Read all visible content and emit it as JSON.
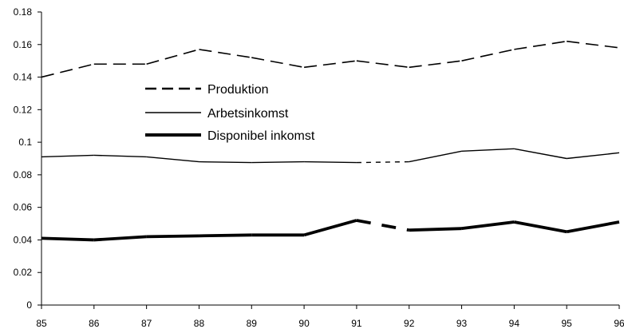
{
  "chart_data": {
    "type": "line",
    "title": "",
    "xlabel": "",
    "ylabel": "",
    "x": [
      "85",
      "86",
      "87",
      "88",
      "89",
      "90",
      "91",
      "92",
      "93",
      "94",
      "95",
      "96"
    ],
    "yticks": [
      "0",
      "0.02",
      "0.04",
      "0.06",
      "0.08",
      "0.1",
      "0.12",
      "0.14",
      "0.16",
      "0.18"
    ],
    "ylim": [
      0,
      0.18
    ],
    "grid": false,
    "legend_position": "upper-left inside plot",
    "series": [
      {
        "name": "Produktion",
        "style": "dashed",
        "weight": "normal",
        "values": [
          0.14,
          0.148,
          0.148,
          0.157,
          0.152,
          0.146,
          0.15,
          0.146,
          0.15,
          0.157,
          0.162,
          0.158
        ]
      },
      {
        "name": "Arbetsinkomst",
        "style": "solid",
        "weight": "thin",
        "break_after": "91",
        "break_style": "dotted",
        "values": [
          0.091,
          0.092,
          0.091,
          0.088,
          0.0875,
          0.088,
          0.0875,
          0.088,
          0.0945,
          0.096,
          0.09,
          0.0935
        ]
      },
      {
        "name": "Disponibel inkomst",
        "style": "solid",
        "weight": "thick",
        "break_after": "91",
        "break_style": "dashed",
        "values": [
          0.041,
          0.04,
          0.042,
          0.0425,
          0.043,
          0.043,
          0.052,
          0.046,
          0.047,
          0.051,
          0.045,
          0.051
        ]
      }
    ],
    "colors": {
      "line": "#000000",
      "background": "#ffffff"
    }
  }
}
